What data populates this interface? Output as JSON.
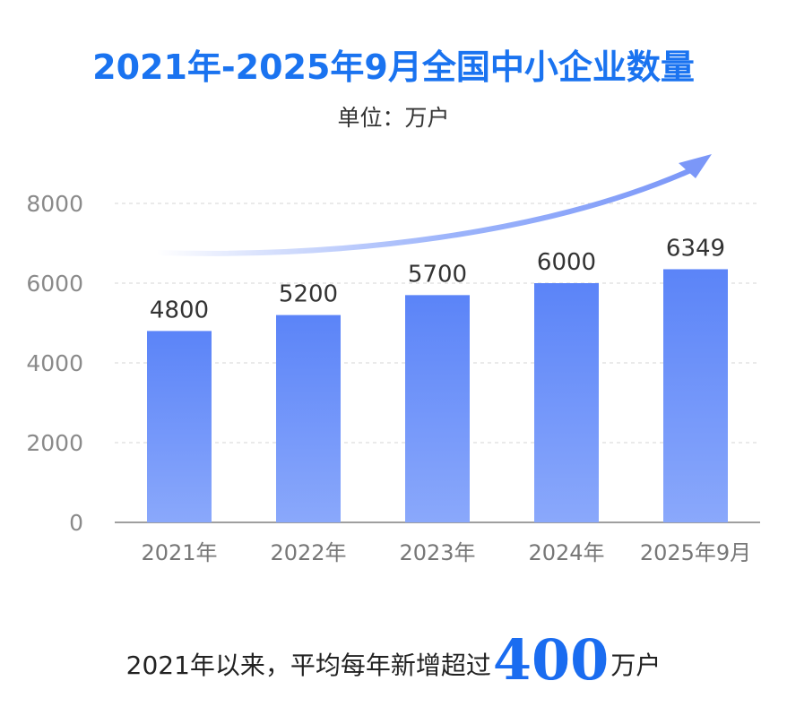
{
  "title": "2021年-2025年9月全国中小企业数量",
  "unit_label": "单位：万户",
  "footer": {
    "prefix": "2021年以来，平均每年新增超过",
    "highlight": "400",
    "suffix": "万户"
  },
  "colors": {
    "title": "#1a73f0",
    "bar_top": "#5b84f8",
    "bar_bottom": "#8aa8fb",
    "highlight": "#1a6cf0"
  },
  "chart_data": {
    "type": "bar",
    "categories": [
      "2021年",
      "2022年",
      "2023年",
      "2024年",
      "2025年9月"
    ],
    "values": [
      4800,
      5200,
      5700,
      6000,
      6349
    ],
    "data_labels": [
      "4800",
      "5200",
      "5700",
      "6000",
      "6349"
    ],
    "yticks": [
      "0",
      "2000",
      "4000",
      "6000",
      "8000"
    ],
    "ylim": [
      0,
      8000
    ],
    "grid": true,
    "trend_arrow": true
  }
}
